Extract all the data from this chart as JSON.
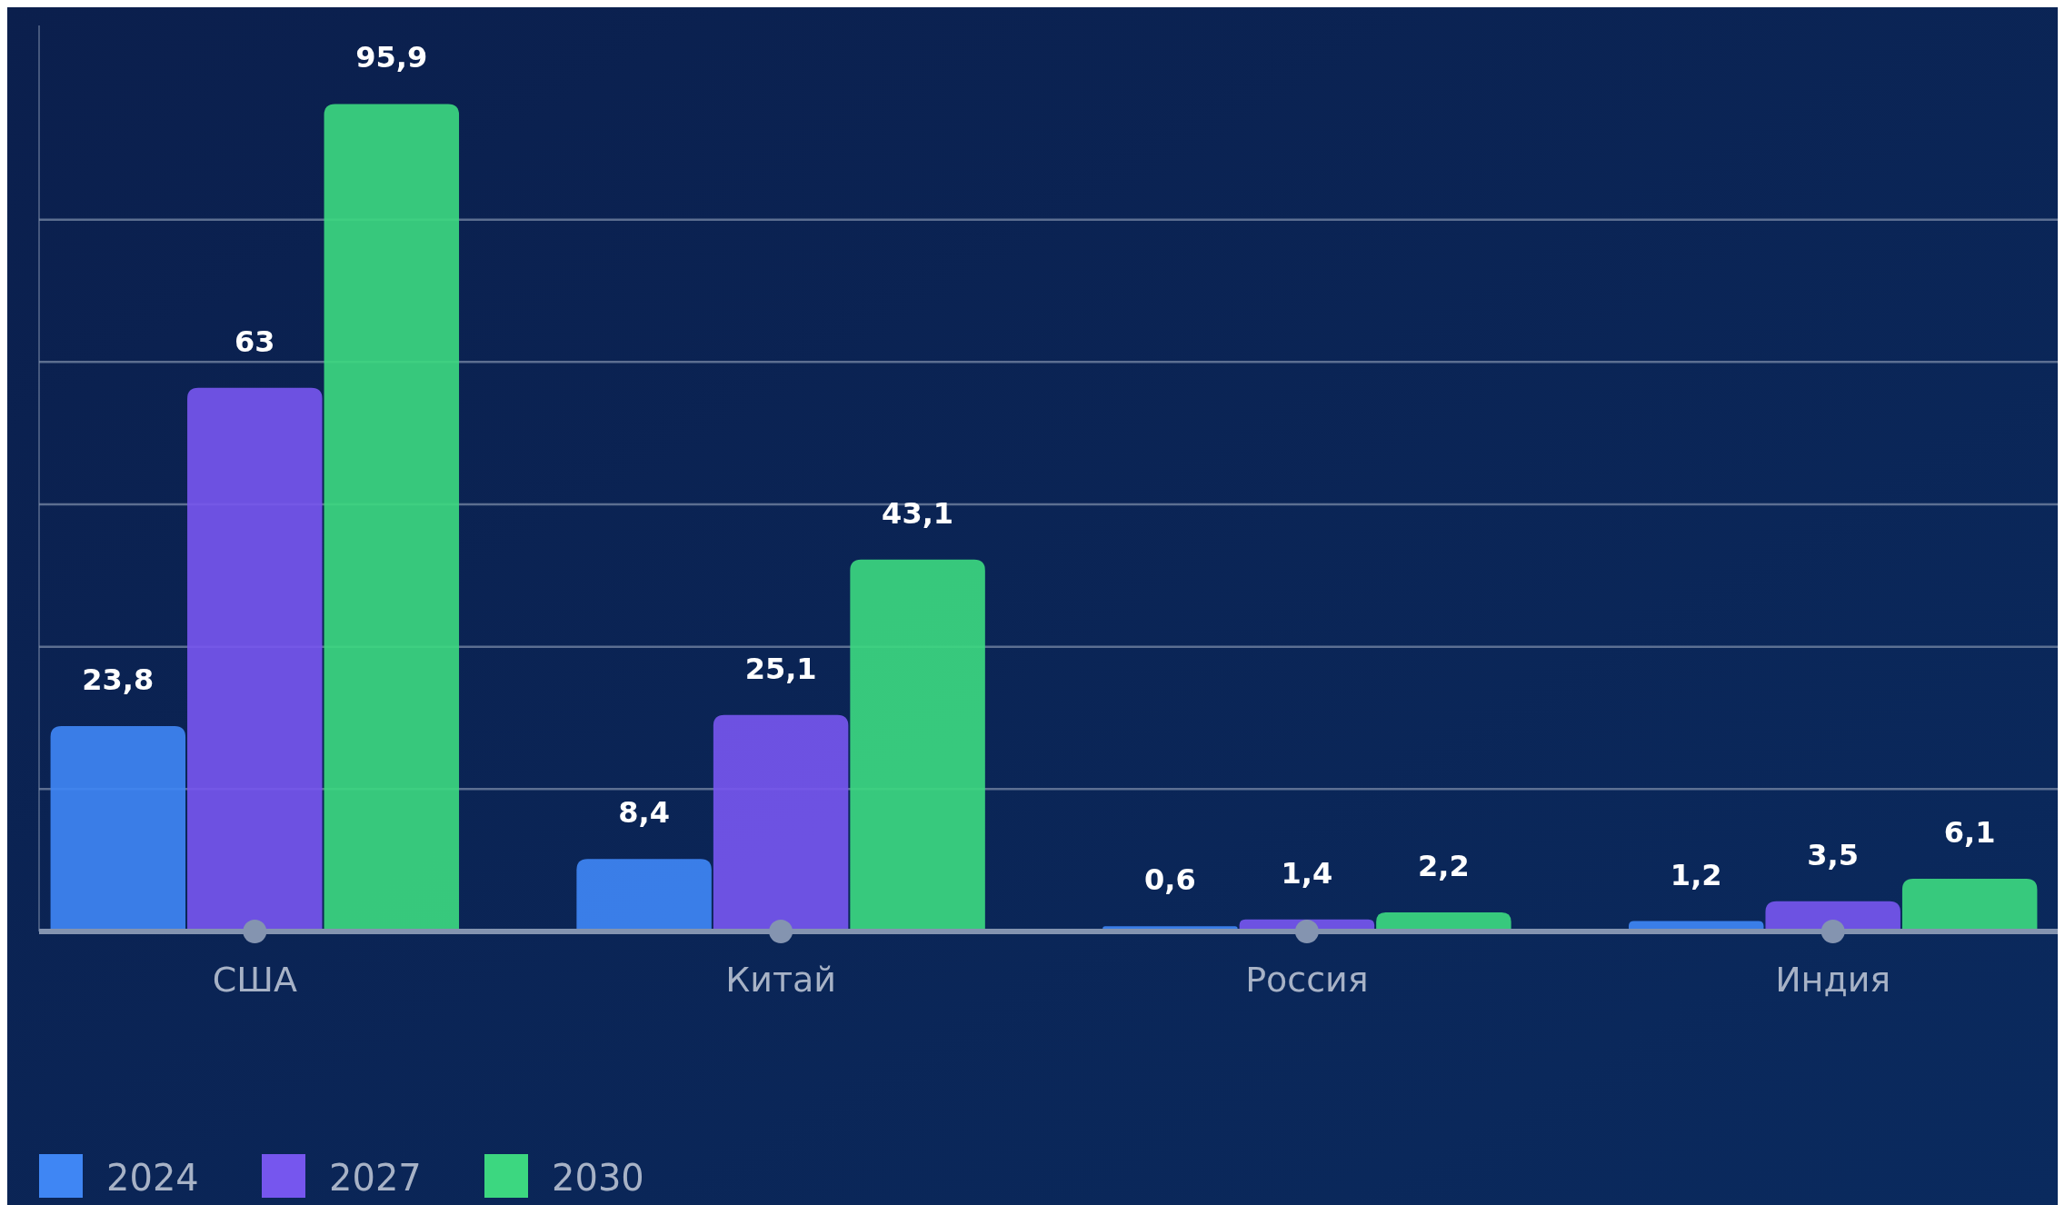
{
  "chart_data": {
    "type": "bar",
    "categories": [
      "США",
      "Китай",
      "Россия",
      "Индия"
    ],
    "series": [
      {
        "name": "2024",
        "color": "#3f86f4",
        "values": [
          23.8,
          8.4,
          0.6,
          1.2
        ],
        "value_labels": [
          "23,8",
          "8,4",
          "0,6",
          "1,2"
        ]
      },
      {
        "name": "2027",
        "color": "#7656ee",
        "values": [
          63,
          25.1,
          1.4,
          3.5
        ],
        "value_labels": [
          "63",
          "25,1",
          "1,4",
          "3,5"
        ]
      },
      {
        "name": "2030",
        "color": "#3cd780",
        "values": [
          95.9,
          43.1,
          2.2,
          6.1
        ],
        "value_labels": [
          "95,9",
          "43,1",
          "2,2",
          "6,1"
        ]
      }
    ],
    "ylim": [
      0,
      105
    ],
    "yticks": [
      {
        "value": 16.5,
        "label": null
      },
      {
        "value": 33,
        "label": null
      },
      {
        "value": 49.5,
        "label": null
      },
      {
        "value": 66,
        "label": null
      },
      {
        "value": 82.5,
        "label": null
      }
    ],
    "grid": "y",
    "legend": "bottom",
    "tick_labels": "x"
  }
}
